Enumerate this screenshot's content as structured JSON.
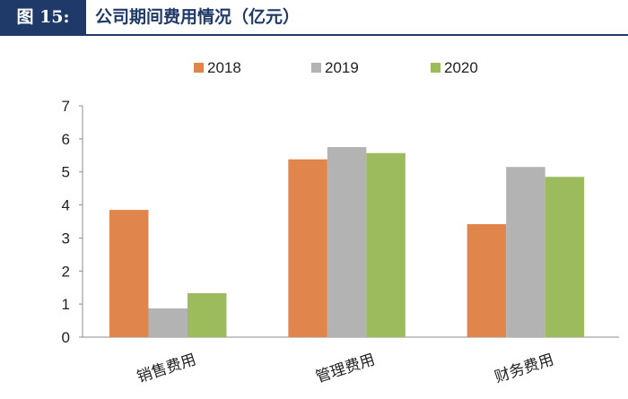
{
  "header": {
    "figure_label": "图 15:",
    "title": "公司期间费用情况（亿元）"
  },
  "colors": {
    "header_bg": "#1f3a68",
    "series_2018": "#e0854c",
    "series_2019": "#b3b3b3",
    "series_2020": "#9bbb5c"
  },
  "chart_data": {
    "type": "bar",
    "title": "",
    "xlabel": "",
    "ylabel": "",
    "categories": [
      "销售费用",
      "管理费用",
      "财务费用"
    ],
    "series": [
      {
        "name": "2018",
        "color": "#e0854c",
        "values": [
          3.85,
          5.38,
          3.42
        ]
      },
      {
        "name": "2019",
        "color": "#b3b3b3",
        "values": [
          0.87,
          5.75,
          5.15
        ]
      },
      {
        "name": "2020",
        "color": "#9bbb5c",
        "values": [
          1.33,
          5.57,
          4.85
        ]
      }
    ],
    "ylim": [
      0,
      7
    ],
    "yticks": [
      "0",
      "1",
      "2",
      "3",
      "4",
      "5",
      "6",
      "7"
    ],
    "legend_position": "top-center",
    "grid": false
  }
}
